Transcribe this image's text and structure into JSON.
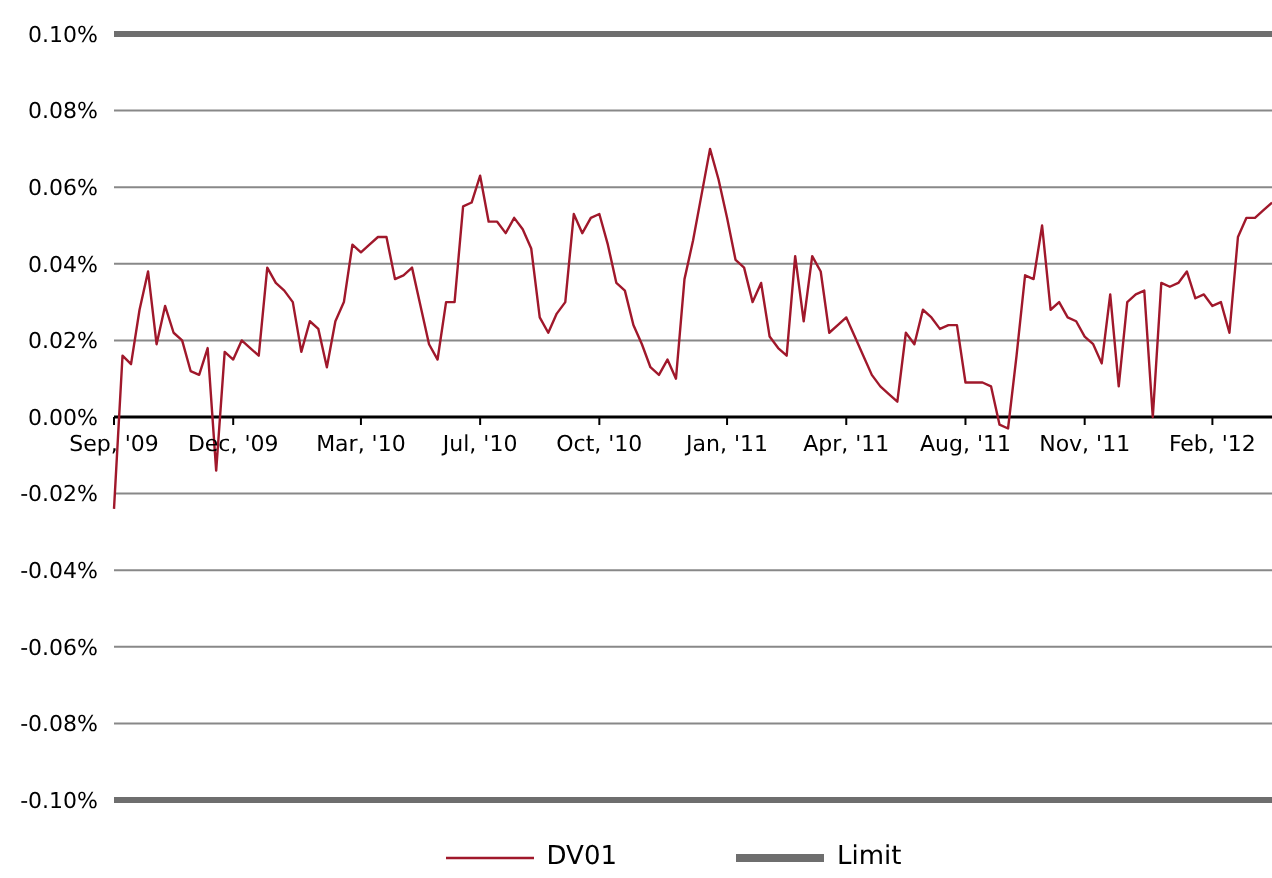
{
  "chart_data": {
    "type": "line",
    "categories": [
      "Sep, '09",
      null,
      null,
      null,
      null,
      null,
      null,
      null,
      null,
      null,
      null,
      null,
      null,
      null,
      "Dec, '09",
      null,
      null,
      null,
      null,
      null,
      null,
      null,
      null,
      null,
      null,
      null,
      null,
      null,
      null,
      "Mar, '10",
      null,
      null,
      null,
      null,
      null,
      null,
      null,
      null,
      null,
      null,
      null,
      null,
      null,
      "Jul, '10",
      null,
      null,
      null,
      null,
      null,
      null,
      null,
      null,
      null,
      null,
      null,
      null,
      null,
      "Oct, '10",
      null,
      null,
      null,
      null,
      null,
      null,
      null,
      null,
      null,
      null,
      null,
      null,
      null,
      null,
      "Jan, '11",
      null,
      null,
      null,
      null,
      null,
      null,
      null,
      null,
      null,
      null,
      null,
      null,
      null,
      "Apr, '11",
      null,
      null,
      null,
      null,
      null,
      null,
      null,
      null,
      null,
      null,
      null,
      null,
      null,
      "Aug, '11",
      null,
      null,
      null,
      null,
      null,
      null,
      null,
      null,
      null,
      null,
      null,
      null,
      null,
      "Nov, '11",
      null,
      null,
      null,
      null,
      null,
      null,
      null,
      null,
      null,
      null,
      null,
      null,
      null,
      null,
      "Feb, '12",
      null,
      null,
      null,
      null,
      null,
      null,
      null
    ],
    "series": [
      {
        "name": "DV01",
        "color": "#a0182b",
        "values": [
          -0.024,
          0.016,
          0.0138,
          0.028,
          0.038,
          0.019,
          0.029,
          0.022,
          0.02,
          0.012,
          0.011,
          0.018,
          -0.014,
          0.017,
          0.015,
          0.02,
          0.018,
          0.016,
          0.039,
          0.035,
          0.033,
          0.03,
          0.017,
          0.025,
          0.023,
          0.013,
          0.025,
          0.03,
          0.045,
          0.043,
          0.045,
          0.047,
          0.047,
          0.036,
          0.037,
          0.039,
          0.029,
          0.019,
          0.015,
          0.03,
          0.03,
          0.055,
          0.056,
          0.063,
          0.051,
          0.051,
          0.048,
          0.052,
          0.049,
          0.044,
          0.026,
          0.022,
          0.027,
          0.03,
          0.053,
          0.048,
          0.052,
          0.053,
          0.045,
          0.035,
          0.033,
          0.024,
          0.019,
          0.013,
          0.011,
          0.015,
          0.01,
          0.036,
          0.046,
          0.058,
          0.07,
          0.062,
          0.052,
          0.041,
          0.039,
          0.03,
          0.035,
          0.021,
          0.018,
          0.016,
          0.042,
          0.025,
          0.042,
          0.038,
          0.022,
          0.024,
          0.026,
          0.021,
          0.016,
          0.011,
          0.008,
          0.006,
          0.004,
          0.022,
          0.019,
          0.028,
          0.026,
          0.023,
          0.024,
          0.024,
          0.009,
          0.009,
          0.009,
          0.008,
          -0.002,
          -0.003,
          0.016,
          0.037,
          0.036,
          0.05,
          0.028,
          0.03,
          0.026,
          0.025,
          0.021,
          0.019,
          0.014,
          0.032,
          0.008,
          0.03,
          0.032,
          0.033,
          0.0,
          0.035,
          0.034,
          0.035,
          0.038,
          0.031,
          0.032,
          0.029,
          0.03,
          0.022,
          0.047,
          0.052,
          0.052,
          0.054,
          0.056
        ]
      }
    ],
    "ref_lines": [
      {
        "axis": "y",
        "value": 0.1,
        "label": "Limit",
        "color": "#6e6e6e"
      },
      {
        "axis": "y",
        "value": -0.1,
        "color": "#6e6e6e"
      }
    ],
    "ylim": [
      -0.1,
      0.1
    ],
    "yticks": [
      {
        "value": -0.1,
        "label": "-0.10%"
      },
      {
        "value": -0.08,
        "label": "-0.08%"
      },
      {
        "value": -0.06,
        "label": "-0.06%"
      },
      {
        "value": -0.04,
        "label": "-0.04%"
      },
      {
        "value": -0.02,
        "label": "-0.02%"
      },
      {
        "value": 0,
        "label": "0.00%"
      },
      {
        "value": 0.02,
        "label": "0.02%"
      },
      {
        "value": 0.04,
        "label": "0.04%"
      },
      {
        "value": 0.06,
        "label": "0.06%"
      },
      {
        "value": 0.08,
        "label": "0.08%"
      },
      {
        "value": 0.1,
        "label": "0.10%"
      }
    ],
    "grid": "y",
    "legend": "bottom",
    "marker": "none",
    "line_style": "solid"
  }
}
